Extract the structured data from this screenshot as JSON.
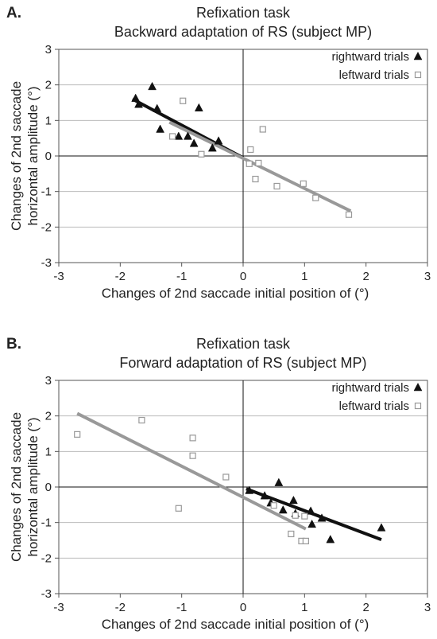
{
  "chart_data": [
    {
      "type": "scatter",
      "panel_label": "A.",
      "title": "Refixation task",
      "subtitle": "Backward adaptation of RS (subject MP)",
      "xlabel": "Changes of 2nd saccade initial position of  (°)",
      "ylabel_line1": "Changes of 2nd saccade",
      "ylabel_line2": "horizontal amplitude  (°)",
      "xlim": [
        -3,
        3
      ],
      "ylim": [
        -3,
        3
      ],
      "xticks": [
        -3,
        -2,
        -1,
        0,
        1,
        2,
        3
      ],
      "yticks": [
        -3,
        -2,
        -1,
        0,
        1,
        2,
        3
      ],
      "grid": "horizontal",
      "legend_position": "top-right",
      "series": [
        {
          "name": "rightward trials",
          "marker": "filled-triangle",
          "color": "#111111",
          "points": [
            [
              -1.75,
              1.62
            ],
            [
              -1.7,
              1.45
            ],
            [
              -1.48,
              1.95
            ],
            [
              -1.4,
              1.33
            ],
            [
              -1.35,
              0.75
            ],
            [
              -1.05,
              0.55
            ],
            [
              -0.9,
              0.55
            ],
            [
              -0.8,
              0.35
            ],
            [
              -0.72,
              1.35
            ],
            [
              -0.5,
              0.22
            ],
            [
              -0.4,
              0.42
            ]
          ],
          "fit_line": [
            [
              -1.8,
              1.6
            ],
            [
              0.0,
              -0.05
            ]
          ]
        },
        {
          "name": "leftward trials",
          "marker": "open-square",
          "color": "#999999",
          "points": [
            [
              -1.15,
              0.55
            ],
            [
              -0.98,
              1.55
            ],
            [
              -0.68,
              0.05
            ],
            [
              0.1,
              -0.22
            ],
            [
              0.12,
              0.18
            ],
            [
              0.2,
              -0.65
            ],
            [
              0.25,
              -0.2
            ],
            [
              0.32,
              0.75
            ],
            [
              0.55,
              -0.85
            ],
            [
              0.98,
              -0.78
            ],
            [
              1.18,
              -1.18
            ],
            [
              1.72,
              -1.65
            ]
          ],
          "fit_line": [
            [
              -1.2,
              0.95
            ],
            [
              1.75,
              -1.55
            ]
          ]
        }
      ]
    },
    {
      "type": "scatter",
      "panel_label": "B.",
      "title": "Refixation task",
      "subtitle": "Forward adaptation of RS (subject MP)",
      "xlabel": "Changes of 2nd saccade initial position of  (°)",
      "ylabel_line1": "Changes of 2nd saccade",
      "ylabel_line2": "horizontal amplitude  (°)",
      "xlim": [
        -3,
        3
      ],
      "ylim": [
        -3,
        3
      ],
      "xticks": [
        -3,
        -2,
        -1,
        0,
        1,
        2,
        3
      ],
      "yticks": [
        -3,
        -2,
        -1,
        0,
        1,
        2,
        3
      ],
      "grid": "horizontal",
      "legend_position": "top-right",
      "series": [
        {
          "name": "rightward trials",
          "marker": "filled-triangle",
          "color": "#111111",
          "points": [
            [
              0.1,
              -0.1
            ],
            [
              0.35,
              -0.25
            ],
            [
              0.45,
              -0.45
            ],
            [
              0.58,
              0.12
            ],
            [
              0.65,
              -0.65
            ],
            [
              0.82,
              -0.38
            ],
            [
              0.85,
              -0.75
            ],
            [
              1.1,
              -0.68
            ],
            [
              1.12,
              -1.05
            ],
            [
              1.28,
              -0.88
            ],
            [
              1.42,
              -1.48
            ],
            [
              2.25,
              -1.15
            ]
          ],
          "fit_line": [
            [
              0.05,
              -0.05
            ],
            [
              2.25,
              -1.48
            ]
          ]
        },
        {
          "name": "leftward trials",
          "marker": "open-square",
          "color": "#999999",
          "points": [
            [
              -2.7,
              1.48
            ],
            [
              -1.65,
              1.88
            ],
            [
              -1.05,
              -0.6
            ],
            [
              -0.82,
              1.38
            ],
            [
              -0.82,
              0.88
            ],
            [
              -0.28,
              0.28
            ],
            [
              0.5,
              -0.52
            ],
            [
              0.78,
              -1.32
            ],
            [
              0.85,
              -0.8
            ],
            [
              0.95,
              -1.52
            ],
            [
              1.02,
              -1.52
            ],
            [
              1.0,
              -0.82
            ]
          ],
          "fit_line": [
            [
              -2.7,
              2.07
            ],
            [
              1.02,
              -1.18
            ]
          ]
        }
      ]
    }
  ]
}
